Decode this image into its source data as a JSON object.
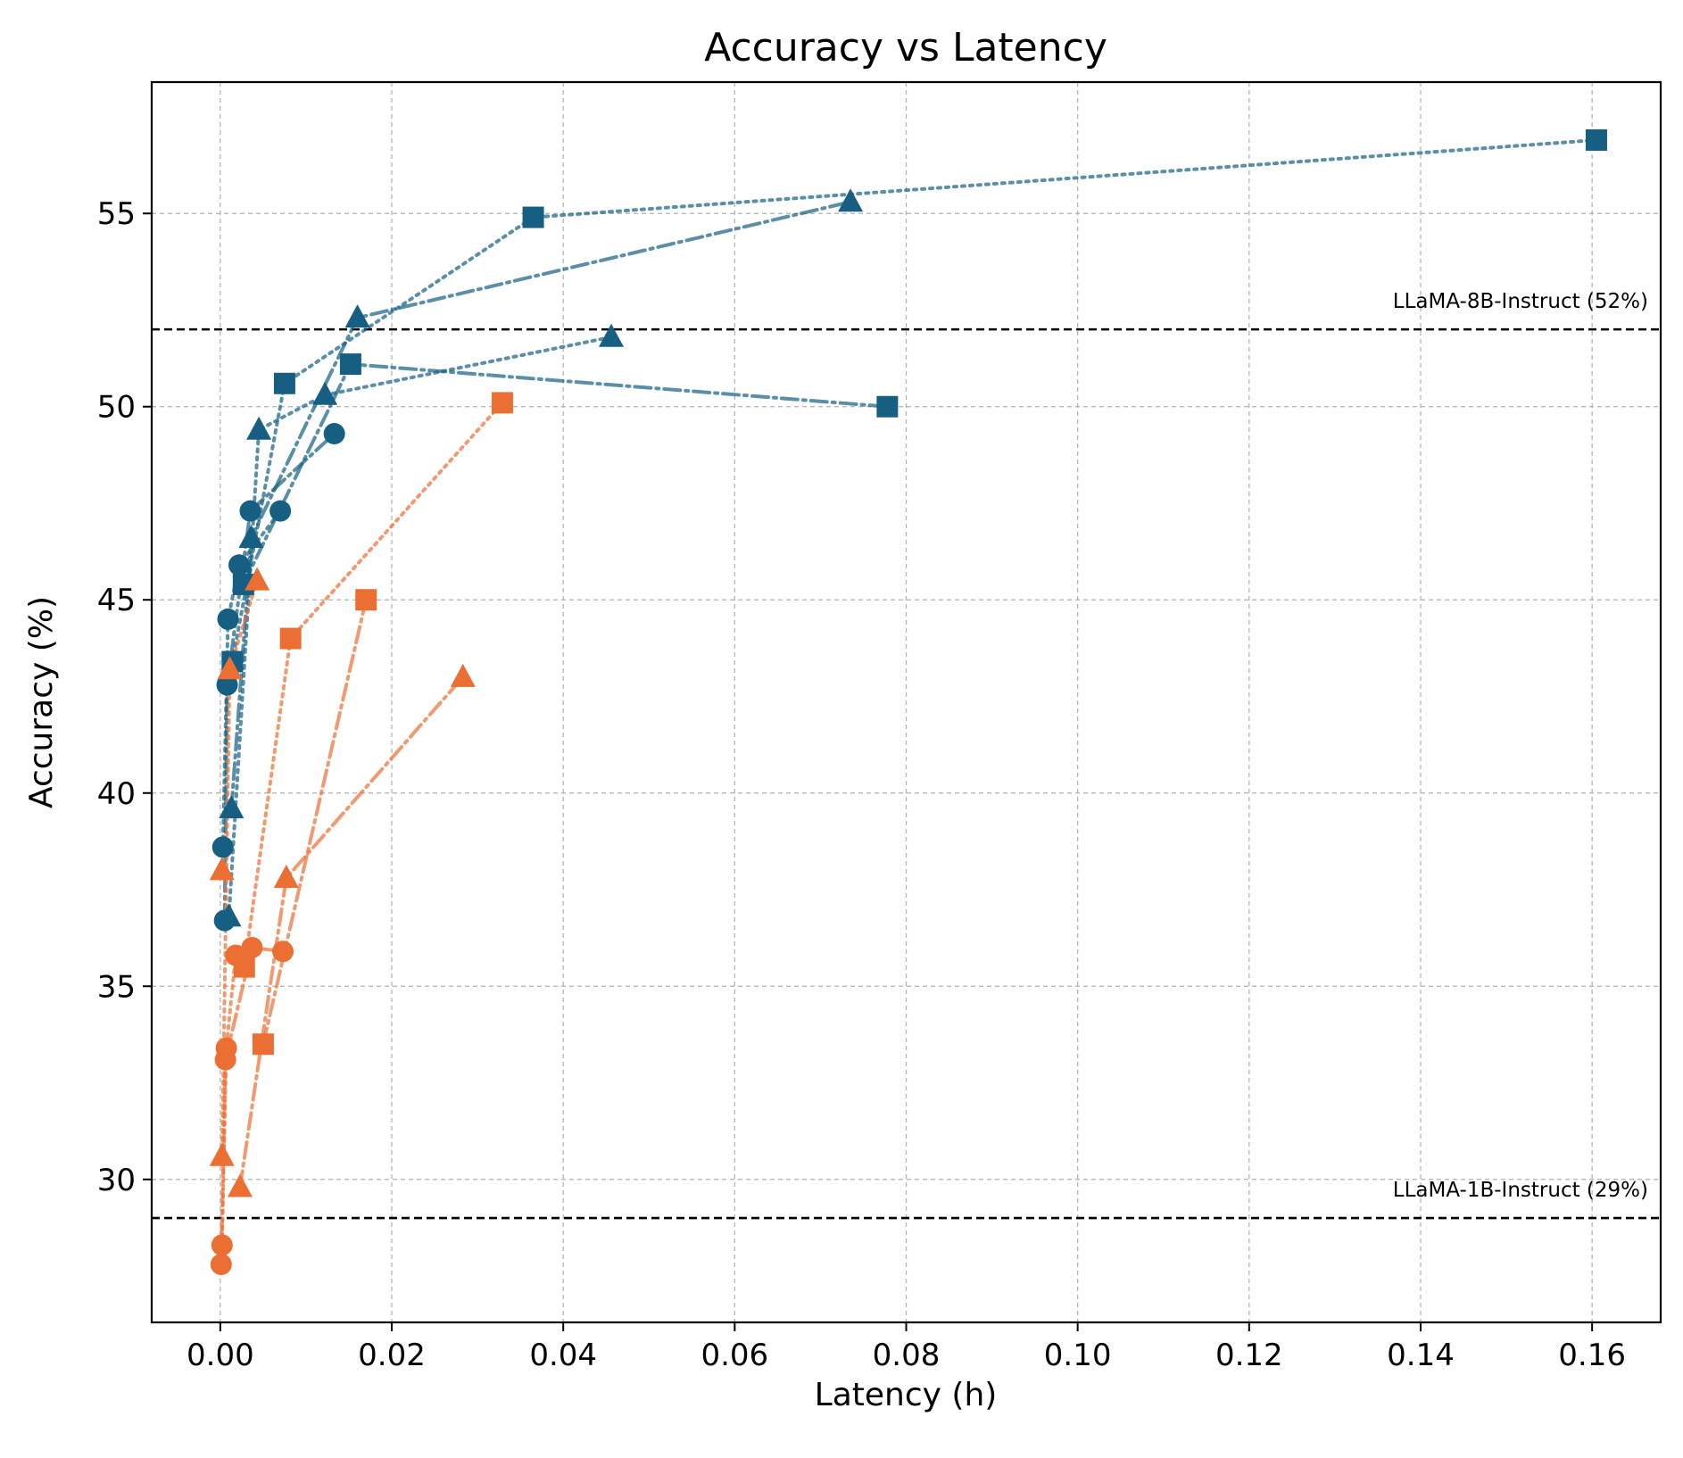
{
  "chart_data": {
    "type": "scatter",
    "title": "Accuracy vs Latency",
    "xlabel": "Latency (h)",
    "ylabel": "Accuracy (%)",
    "xlim": [
      -0.008,
      0.168
    ],
    "ylim": [
      26.3,
      58.4
    ],
    "xticks": [
      0.0,
      0.02,
      0.04,
      0.06,
      0.08,
      0.1,
      0.12,
      0.14,
      0.16
    ],
    "xtick_labels": [
      "0.00",
      "0.02",
      "0.04",
      "0.06",
      "0.08",
      "0.10",
      "0.12",
      "0.14",
      "0.16"
    ],
    "yticks": [
      30,
      35,
      40,
      45,
      50,
      55
    ],
    "ytick_labels": [
      "30",
      "35",
      "40",
      "45",
      "50",
      "55"
    ],
    "grid": true,
    "colors": {
      "blue": "#165f82",
      "orange": "#eb6f33"
    },
    "reference_lines": [
      {
        "y": 52,
        "label": "LLaMA-8B-Instruct (52%)"
      },
      {
        "y": 29,
        "label": "LLaMA-1B-Instruct (29%)"
      }
    ],
    "series": [
      {
        "color": "blue",
        "marker": "square",
        "line": "dotted",
        "x": [
          0.0014,
          0.0075,
          0.0365,
          0.1605
        ],
        "y": [
          43.4,
          50.6,
          54.9,
          56.9
        ]
      },
      {
        "color": "blue",
        "marker": "square",
        "line": "dashdot",
        "x": [
          0.0027,
          0.0152,
          0.0778
        ],
        "y": [
          45.4,
          51.1,
          50.0
        ]
      },
      {
        "color": "blue",
        "marker": "triangle",
        "line": "dashdot",
        "x": [
          0.0013,
          0.0036,
          0.016,
          0.0735
        ],
        "y": [
          39.6,
          46.6,
          52.3,
          55.3
        ]
      },
      {
        "color": "blue",
        "marker": "triangle",
        "line": "dotted",
        "x": [
          0.001,
          0.0045,
          0.0122,
          0.0456
        ],
        "y": [
          36.8,
          49.4,
          50.3,
          51.8
        ]
      },
      {
        "color": "blue",
        "marker": "circle",
        "line": "dotted",
        "x": [
          0.0003,
          0.0009,
          0.0022,
          0.007
        ],
        "y": [
          38.6,
          44.5,
          45.9,
          47.3
        ]
      },
      {
        "color": "blue",
        "marker": "circle",
        "line": "dashdot",
        "x": [
          0.0005,
          0.0008,
          0.0035,
          0.0133
        ],
        "y": [
          36.7,
          42.8,
          47.3,
          49.3
        ]
      },
      {
        "color": "orange",
        "marker": "square",
        "line": "dotted",
        "x": [
          0.0028,
          0.0082,
          0.0329
        ],
        "y": [
          35.5,
          44.0,
          50.1
        ]
      },
      {
        "color": "orange",
        "marker": "square",
        "line": "dashdot",
        "x": [
          0.005,
          0.017
        ],
        "y": [
          33.5,
          45.0
        ]
      },
      {
        "color": "orange",
        "marker": "triangle",
        "line": "dashdot",
        "x": [
          0.0023,
          0.0077,
          0.0283
        ],
        "y": [
          29.8,
          37.8,
          43.0
        ]
      },
      {
        "color": "orange",
        "marker": "triangle",
        "line": "dotted",
        "x": [
          0.0002,
          0.0011,
          0.0043
        ],
        "y": [
          30.6,
          43.2,
          45.5
        ]
      },
      {
        "color": "orange",
        "marker": "circle",
        "line": "dotted",
        "x": [
          0.0002,
          0.0007,
          0.0018
        ],
        "y": [
          28.3,
          33.4,
          35.8
        ]
      },
      {
        "color": "orange",
        "marker": "circle",
        "line": "dashdot",
        "x": [
          0.0001,
          0.0006,
          0.0037,
          0.0073
        ],
        "y": [
          27.8,
          33.1,
          36.0,
          35.9
        ]
      },
      {
        "color": "orange",
        "marker": "triangle",
        "line": "none",
        "x": [
          0.0002
        ],
        "y": [
          38.0
        ]
      }
    ]
  }
}
